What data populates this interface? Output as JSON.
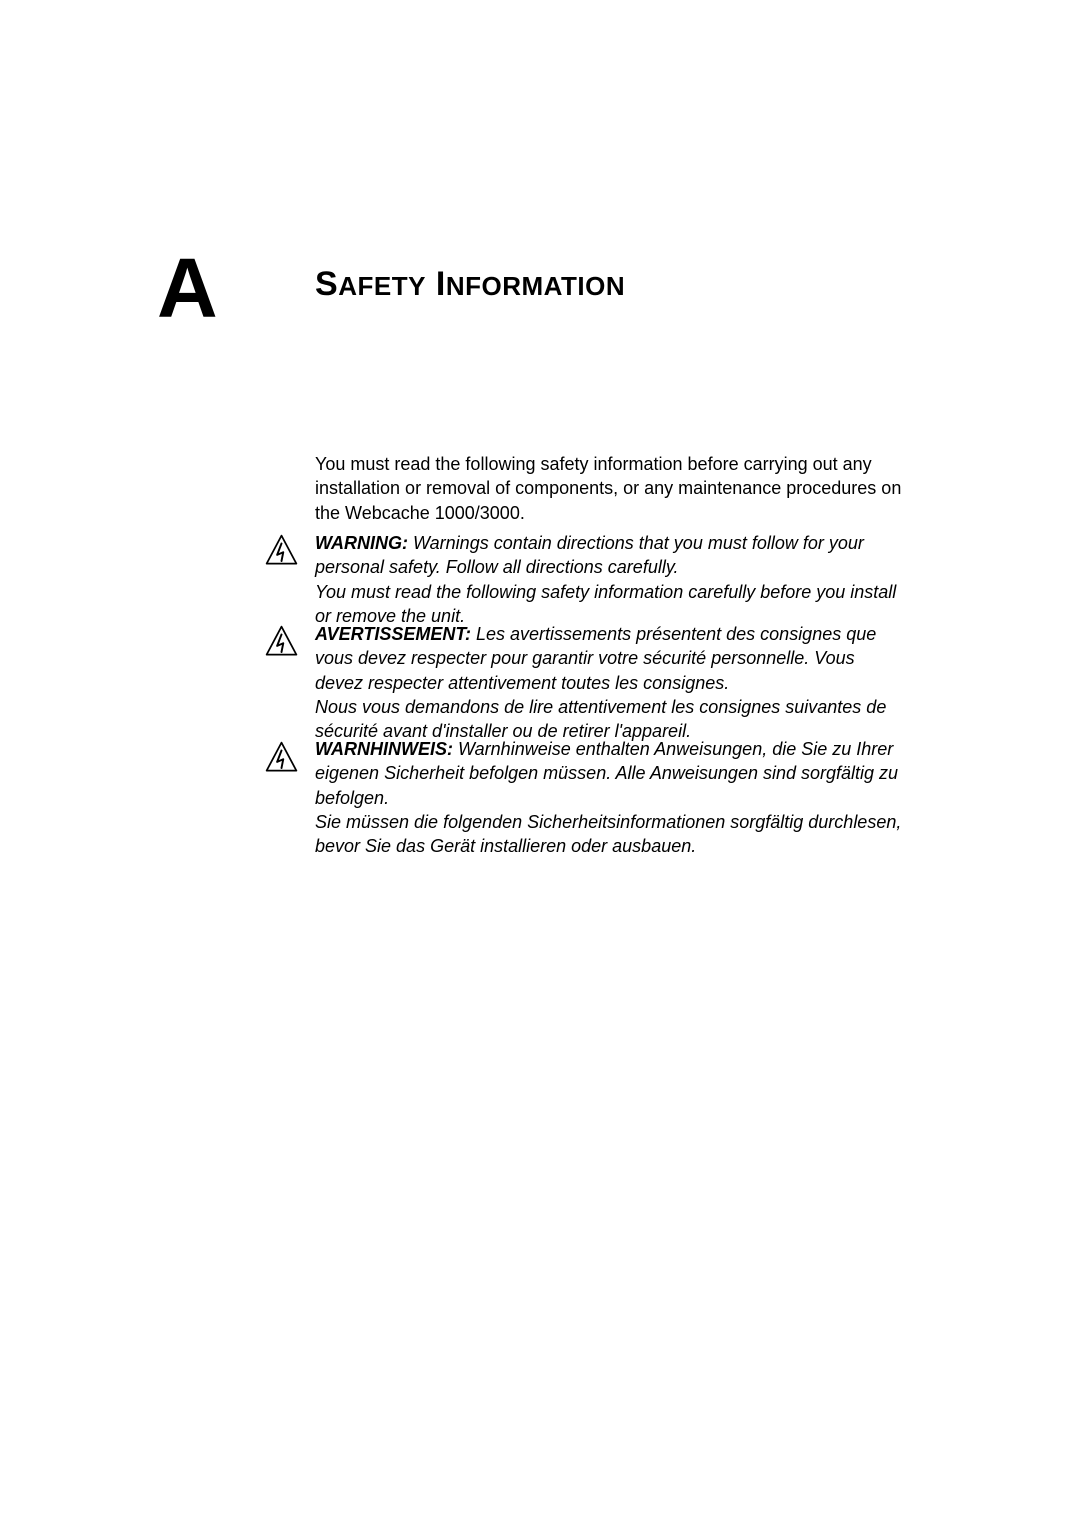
{
  "appendix_letter": "A",
  "title_word1_cap": "S",
  "title_word1_rest": "AFETY",
  "title_word2_cap": "I",
  "title_word2_rest": "NFORMATION",
  "intro_text": "You must read the following safety information before carrying out any installation or removal of components, or any maintenance procedures on the Webcache 1000/3000.",
  "warning_en_label": "WARNING:",
  "warning_en_text": "Warnings contain directions that you must follow for your personal safety. Follow all directions carefully.\nYou must read the following safety information carefully before you install or remove the unit.",
  "warning_fr_label": "AVERTISSEMENT:",
  "warning_fr_text": "Les avertissements présentent des consignes que vous devez respecter pour garantir votre sécurité personnelle. Vous devez respecter attentivement toutes les consignes.\nNous vous demandons de lire attentivement les consignes suivantes de sécurité avant d'installer ou de retirer l'appareil.",
  "warning_de_label": "WARNHINWEIS:",
  "warning_de_text": "Warnhinweise enthalten Anweisungen, die Sie zu Ihrer eigenen Sicherheit befolgen müssen. Alle Anweisungen sind sorgfältig zu befolgen.\nSie müssen die folgenden Sicherheitsinformationen sorgfältig durchlesen, bevor Sie das Gerät installieren oder ausbauen.",
  "icon_stroke": "#000000",
  "icon_fill": "#000000"
}
